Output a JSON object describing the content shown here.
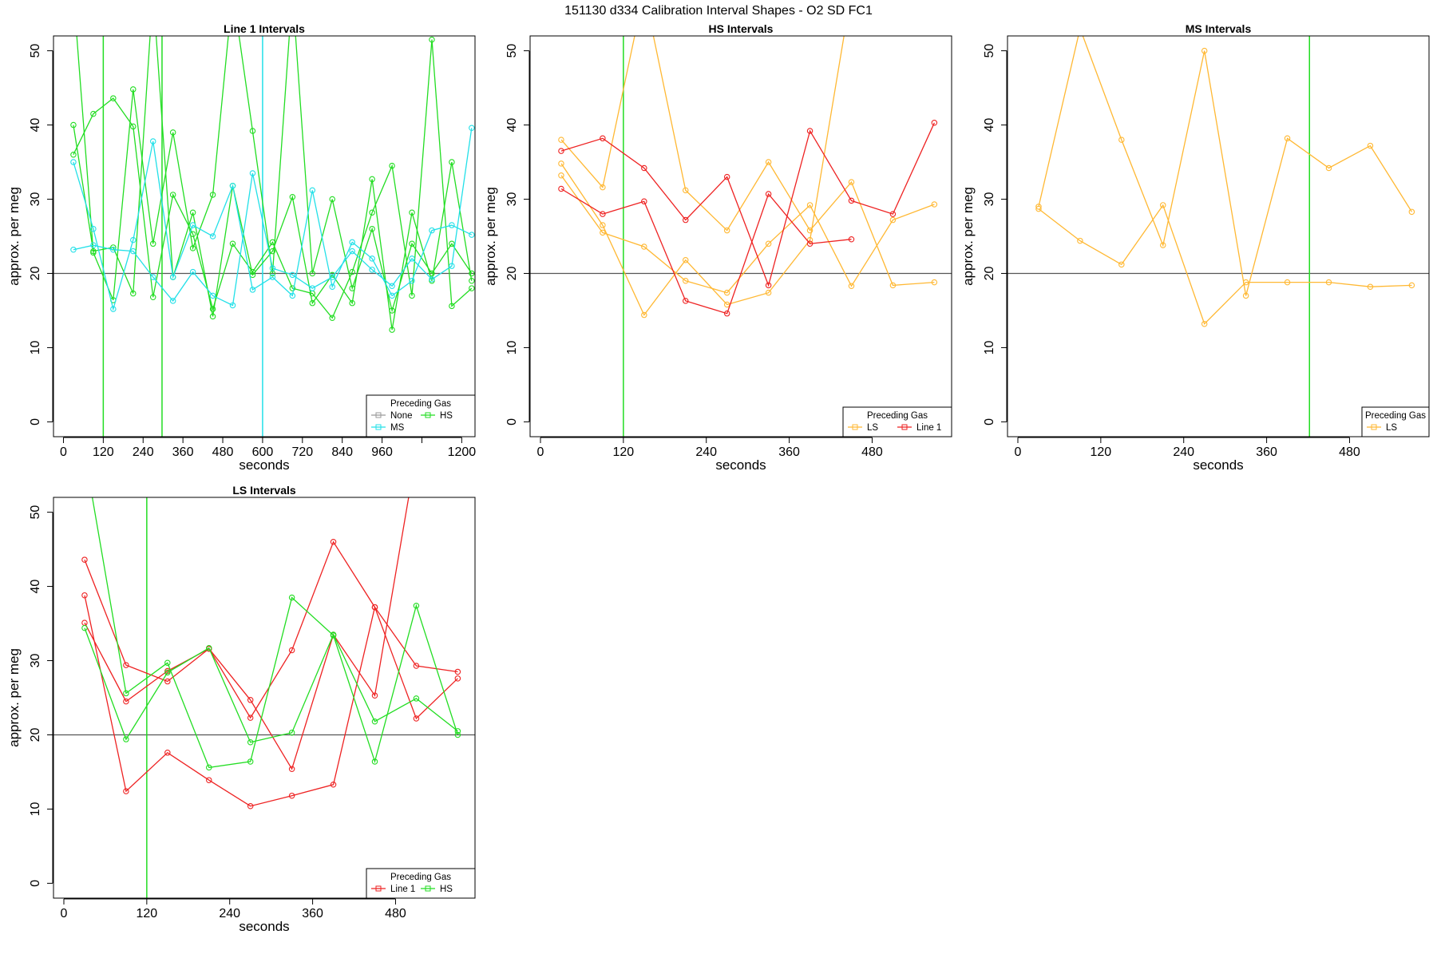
{
  "figure_title": "151130    d334   Calibration Interval Shapes - O2 SD FC1",
  "colors": {
    "None": "#999999",
    "HS": "#22dd22",
    "MS": "#22e0e8",
    "LS": "#ffb833",
    "Line 1": "#ee2222",
    "reference_line": "#555555",
    "frame": "#000000"
  },
  "chart_data": [
    {
      "type": "line",
      "title": "Line 1 Intervals",
      "xlabel": "seconds",
      "ylabel": "approx. per meg",
      "xlim": [
        -30,
        1240
      ],
      "ylim": [
        -2,
        52
      ],
      "x_ticks": [
        0,
        120,
        240,
        360,
        480,
        600,
        720,
        840,
        960,
        1080,
        1200
      ],
      "x_tick_labels": [
        "0",
        "120",
        "240",
        "360",
        "480",
        "600",
        "720",
        "840",
        "960",
        "",
        "1200"
      ],
      "y_ticks": [
        0,
        10,
        20,
        30,
        40,
        50
      ],
      "y_tick_labels": [
        "0",
        "10",
        "20",
        "30",
        "40",
        "50"
      ],
      "hline": 20,
      "vlines": [
        {
          "x": 120,
          "color_key": "HS"
        },
        {
          "x": 297,
          "color_key": "HS"
        },
        {
          "x": 600,
          "color_key": "MS"
        }
      ],
      "legend": {
        "title": "Preceding Gas",
        "position": "bottom-right",
        "columns": 2,
        "entries": [
          {
            "label": "None",
            "color_key": "None"
          },
          {
            "label": "MS",
            "color_key": "MS"
          },
          {
            "label": "HS",
            "color_key": "HS"
          }
        ]
      },
      "series": [
        {
          "name": "HS a",
          "color_key": "HS",
          "x": [
            30,
            90,
            150,
            210,
            270,
            330,
            390,
            450,
            510,
            570,
            630,
            690,
            750,
            810,
            870,
            930,
            990,
            1050,
            1110,
            1170,
            1230
          ],
          "y": [
            40,
            23,
            23.5,
            17.3,
            58,
            19.5,
            28.2,
            14.2,
            31.8,
            19.8,
            23,
            30.3,
            16,
            19.8,
            16,
            32.7,
            12.4,
            28.2,
            19,
            35,
            19
          ]
        },
        {
          "name": "HS b",
          "color_key": "HS",
          "x": [
            30,
            90,
            150,
            210,
            270,
            330,
            390,
            450,
            510,
            570,
            630,
            690,
            750,
            810,
            870,
            930,
            990,
            1050,
            1110,
            1170,
            1230
          ],
          "y": [
            36,
            41.5,
            43.6,
            39.8,
            16.8,
            30.6,
            25.3,
            15.2,
            24,
            20.2,
            24.2,
            18,
            17.3,
            14,
            20.2,
            28.2,
            34.5,
            17,
            51.5,
            15.6,
            18
          ]
        },
        {
          "name": "HS c",
          "color_key": "HS",
          "x": [
            30,
            90,
            150,
            210,
            270,
            330,
            390,
            450,
            510,
            570,
            630,
            690,
            750,
            810,
            870,
            930,
            990,
            1050,
            1110,
            1170,
            1230
          ],
          "y": [
            58,
            22.8,
            16.4,
            44.8,
            24,
            39,
            23.4,
            30.6,
            58,
            39.2,
            20,
            58,
            20,
            30,
            18,
            26,
            15,
            24,
            20,
            24,
            20
          ]
        },
        {
          "name": "MS a",
          "color_key": "MS",
          "x": [
            30,
            90,
            150,
            210,
            270,
            330,
            390,
            450,
            510,
            570,
            630,
            690,
            750,
            810,
            870,
            930,
            990,
            1050,
            1110,
            1170,
            1230
          ],
          "y": [
            35,
            26,
            15.2,
            24.5,
            37.8,
            19.5,
            26.5,
            25,
            31.8,
            17.8,
            19.5,
            17,
            31.2,
            18.2,
            24.2,
            22,
            17,
            19,
            25.8,
            26.5,
            25.2
          ]
        },
        {
          "name": "MS b",
          "color_key": "MS",
          "x": [
            30,
            90,
            150,
            210,
            270,
            330,
            390,
            450,
            510,
            570,
            630,
            690,
            750,
            810,
            870,
            930,
            990,
            1050,
            1110,
            1170,
            1230
          ],
          "y": [
            23.2,
            23.8,
            23.2,
            23,
            19.5,
            16.3,
            20.2,
            17,
            15.7,
            33.5,
            20.7,
            19.8,
            18,
            19.5,
            23,
            20.5,
            18.3,
            22,
            19.2,
            21,
            39.6
          ]
        }
      ]
    },
    {
      "type": "line",
      "title": "HS Intervals",
      "xlabel": "seconds",
      "ylabel": "approx. per meg",
      "xlim": [
        -15,
        595
      ],
      "ylim": [
        -2,
        52
      ],
      "x_ticks": [
        0,
        120,
        240,
        360,
        480
      ],
      "x_tick_labels": [
        "0",
        "120",
        "240",
        "360",
        "480"
      ],
      "y_ticks": [
        0,
        10,
        20,
        30,
        40,
        50
      ],
      "y_tick_labels": [
        "0",
        "10",
        "20",
        "30",
        "40",
        "50"
      ],
      "hline": 20,
      "vlines": [
        {
          "x": 120,
          "color_key": "HS"
        }
      ],
      "legend": {
        "title": "Preceding Gas",
        "position": "bottom-right",
        "columns": 2,
        "entries": [
          {
            "label": "LS",
            "color_key": "LS"
          },
          {
            "label": "Line 1",
            "color_key": "Line 1"
          }
        ]
      },
      "series": [
        {
          "name": "LS a",
          "color_key": "LS",
          "x": [
            30,
            90,
            150,
            210,
            270,
            330,
            390,
            450,
            510,
            570
          ],
          "y": [
            38,
            31.6,
            58,
            31.2,
            25.8,
            35,
            25.8,
            32.3,
            18.4,
            18.8
          ]
        },
        {
          "name": "LS b",
          "color_key": "LS",
          "x": [
            30,
            90,
            150,
            210,
            270,
            330,
            390,
            450,
            510,
            570
          ],
          "y": [
            33.2,
            25.5,
            23.6,
            19,
            17.4,
            24,
            29.2,
            18.3,
            27.2,
            29.3
          ]
        },
        {
          "name": "LS c",
          "color_key": "LS",
          "x": [
            30,
            90,
            150,
            210,
            270,
            330,
            390,
            450
          ],
          "y": [
            34.8,
            26.5,
            14.4,
            21.8,
            15.8,
            17.4,
            24.5,
            58
          ]
        },
        {
          "name": "Line 1 a",
          "color_key": "Line 1",
          "x": [
            30,
            90,
            150,
            210,
            270,
            330,
            390,
            450,
            510,
            570
          ],
          "y": [
            36.5,
            38.2,
            34.2,
            27.2,
            33,
            18.4,
            39.2,
            29.8,
            28,
            40.3
          ]
        },
        {
          "name": "Line 1 b",
          "color_key": "Line 1",
          "x": [
            30,
            90,
            150,
            210,
            270,
            330,
            390,
            450
          ],
          "y": [
            31.4,
            28,
            29.7,
            16.3,
            14.6,
            30.7,
            24,
            24.6
          ]
        }
      ]
    },
    {
      "type": "line",
      "title": "MS Intervals",
      "xlabel": "seconds",
      "ylabel": "approx. per meg",
      "xlim": [
        -15,
        595
      ],
      "ylim": [
        -2,
        52
      ],
      "x_ticks": [
        0,
        120,
        240,
        360,
        480
      ],
      "x_tick_labels": [
        "0",
        "120",
        "240",
        "360",
        "480"
      ],
      "y_ticks": [
        0,
        10,
        20,
        30,
        40,
        50
      ],
      "y_tick_labels": [
        "0",
        "10",
        "20",
        "30",
        "40",
        "50"
      ],
      "hline": 20,
      "vlines": [
        {
          "x": 422,
          "color_key": "HS"
        }
      ],
      "legend": {
        "title": "Preceding Gas",
        "position": "bottom-right",
        "columns": 1,
        "entries": [
          {
            "label": "LS",
            "color_key": "LS"
          }
        ]
      },
      "series": [
        {
          "name": "LS a",
          "color_key": "LS",
          "x": [
            30,
            90,
            150,
            210,
            270,
            330,
            390,
            450,
            510,
            570
          ],
          "y": [
            29,
            53,
            38,
            23.8,
            50,
            17,
            38.2,
            34.2,
            37.2,
            28.3
          ]
        },
        {
          "name": "LS b",
          "color_key": "LS",
          "x": [
            30,
            90,
            150,
            210,
            270,
            330,
            390,
            450,
            510,
            570
          ],
          "y": [
            28.7,
            24.4,
            21.2,
            29.2,
            13.2,
            18.8,
            18.8,
            18.8,
            18.2,
            18.4
          ]
        }
      ]
    },
    {
      "type": "line",
      "title": "LS Intervals",
      "xlabel": "seconds",
      "ylabel": "approx. per meg",
      "xlim": [
        -15,
        595
      ],
      "ylim": [
        -2,
        52
      ],
      "x_ticks": [
        0,
        120,
        240,
        360,
        480
      ],
      "x_tick_labels": [
        "0",
        "120",
        "240",
        "360",
        "480"
      ],
      "y_ticks": [
        0,
        10,
        20,
        30,
        40,
        50
      ],
      "y_tick_labels": [
        "0",
        "10",
        "20",
        "30",
        "40",
        "50"
      ],
      "hline": 20,
      "vlines": [
        {
          "x": 120,
          "color_key": "HS"
        }
      ],
      "legend": {
        "title": "Preceding Gas",
        "position": "bottom-right",
        "columns": 2,
        "entries": [
          {
            "label": "Line 1",
            "color_key": "Line 1"
          },
          {
            "label": "HS",
            "color_key": "HS"
          }
        ]
      },
      "series": [
        {
          "name": "Line 1 a",
          "color_key": "Line 1",
          "x": [
            30,
            90,
            150,
            210,
            270,
            330,
            390,
            450,
            510,
            570
          ],
          "y": [
            43.6,
            29.4,
            27.2,
            31.6,
            22.3,
            31.4,
            46,
            37.2,
            22.2,
            27.6
          ]
        },
        {
          "name": "Line 1 b",
          "color_key": "Line 1",
          "x": [
            30,
            90,
            150,
            210,
            270,
            330,
            390,
            450,
            510,
            570
          ],
          "y": [
            38.8,
            12.4,
            17.6,
            13.9,
            10.4,
            11.8,
            13.3,
            37.2,
            29.3,
            28.5
          ]
        },
        {
          "name": "Line 1 c",
          "color_key": "Line 1",
          "x": [
            30,
            90,
            150,
            210,
            270,
            330,
            390,
            450,
            510
          ],
          "y": [
            35.1,
            24.5,
            28.6,
            31.6,
            24.7,
            15.4,
            33.5,
            25.3,
            58
          ]
        },
        {
          "name": "HS a",
          "color_key": "HS",
          "x": [
            30,
            90,
            150,
            210,
            270,
            330,
            390,
            450,
            510,
            570
          ],
          "y": [
            58,
            25.6,
            29.7,
            15.6,
            16.4,
            38.5,
            33.4,
            16.4,
            37.4,
            20
          ]
        },
        {
          "name": "HS b",
          "color_key": "HS",
          "x": [
            30,
            90,
            150,
            210,
            270,
            330,
            390,
            450,
            510,
            570
          ],
          "y": [
            34.4,
            19.4,
            28.4,
            31.7,
            19,
            20.3,
            33.5,
            21.8,
            24.9,
            20.5
          ]
        }
      ]
    }
  ]
}
